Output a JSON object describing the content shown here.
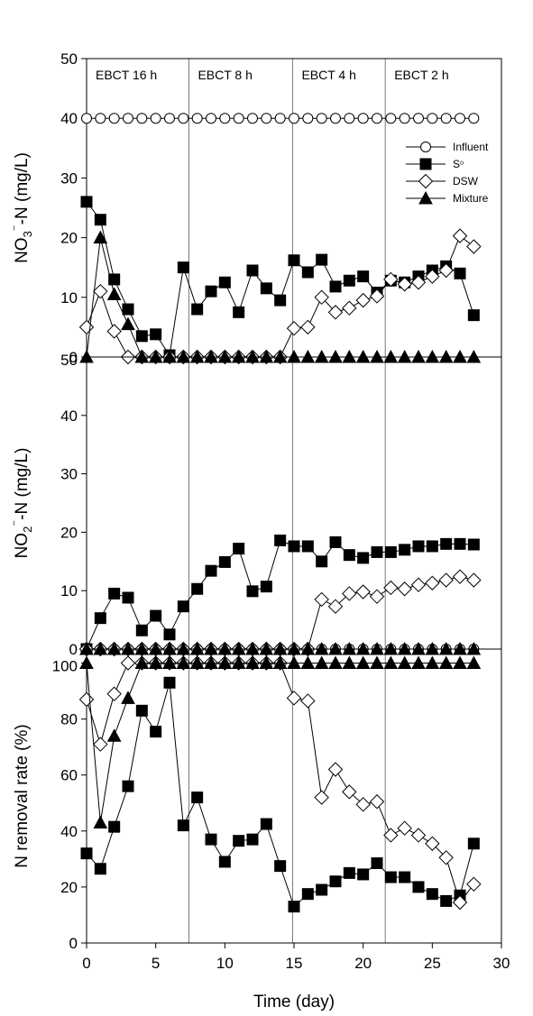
{
  "chart_data": {
    "type": "line",
    "shared_x_axis": {
      "label": "Time (day)",
      "range": [
        0,
        30
      ],
      "ticks": [
        0,
        5,
        10,
        15,
        20,
        25,
        30
      ],
      "tick_labels": [
        "0",
        "5",
        "10",
        "15",
        "20",
        "25",
        "30"
      ]
    },
    "phases": [
      {
        "label": "EBCT 16 h",
        "start": 0,
        "end": 7.4
      },
      {
        "label": "EBCT 8 h",
        "start": 7.4,
        "end": 14.9
      },
      {
        "label": "EBCT 4 h",
        "start": 14.9,
        "end": 21.6
      },
      {
        "label": "EBCT 2 h",
        "start": 21.6,
        "end": 30
      }
    ],
    "legend": {
      "placement": "top-right",
      "entries": [
        {
          "name": "Influent",
          "marker": "circle-open"
        },
        {
          "name": "S⁰",
          "marker": "square-filled"
        },
        {
          "name": "DSW",
          "marker": "diamond-open"
        },
        {
          "name": "Mixture",
          "marker": "triangle-filled"
        }
      ]
    },
    "panels": [
      {
        "ylabel_parts": [
          "NO",
          "3",
          "⁻",
          "-N (mg/L)"
        ],
        "ylim": [
          0,
          50
        ],
        "yticks": [
          0,
          10,
          20,
          30,
          40,
          50
        ],
        "series": [
          {
            "name": "Influent",
            "marker": "circle-open",
            "x": [
              0,
              1,
              2,
              3,
              4,
              5,
              6,
              7,
              8,
              9,
              10,
              11,
              12,
              13,
              14,
              15,
              16,
              17,
              18,
              19,
              20,
              21,
              22,
              23,
              24,
              25,
              26,
              27,
              28
            ],
            "y": [
              40,
              40,
              40,
              40,
              40,
              40,
              40,
              40,
              40,
              40,
              40,
              40,
              40,
              40,
              40,
              40,
              40,
              40,
              40,
              40,
              40,
              40,
              40,
              40,
              40,
              40,
              40,
              40,
              40
            ]
          },
          {
            "name": "S⁰",
            "marker": "square-filled",
            "x": [
              0,
              1,
              2,
              3,
              4,
              5,
              6,
              7,
              8,
              9,
              10,
              11,
              12,
              13,
              14,
              15,
              16,
              17,
              18,
              19,
              20,
              21,
              22,
              23,
              24,
              25,
              26,
              27,
              28
            ],
            "y": [
              26,
              23,
              13,
              8,
              3.5,
              3.8,
              0.3,
              15,
              8,
              11,
              12.5,
              7.5,
              14.5,
              11.5,
              9.5,
              16.2,
              14.2,
              16.3,
              11.8,
              12.8,
              13.5,
              10.8,
              12.8,
              12.5,
              13.5,
              14.5,
              15.2,
              14,
              7
            ]
          },
          {
            "name": "DSW",
            "marker": "diamond-open",
            "x": [
              0,
              1,
              2,
              3,
              4,
              5,
              6,
              7,
              8,
              9,
              10,
              11,
              12,
              13,
              14,
              15,
              16,
              17,
              18,
              19,
              20,
              21,
              22,
              23,
              24,
              25,
              26,
              27,
              28
            ],
            "y": [
              5,
              11,
              4.3,
              0,
              0,
              0,
              0,
              0,
              0,
              0,
              0,
              0,
              0,
              0,
              0,
              4.8,
              5,
              10,
              7.5,
              8.2,
              9.5,
              10.2,
              13,
              12.2,
              12.5,
              13.5,
              14.5,
              20.3,
              18.5
            ]
          },
          {
            "name": "Mixture",
            "marker": "triangle-filled",
            "x": [
              0,
              1,
              2,
              3,
              4,
              5,
              6,
              7,
              8,
              9,
              10,
              11,
              12,
              13,
              14,
              15,
              16,
              17,
              18,
              19,
              20,
              21,
              22,
              23,
              24,
              25,
              26,
              27,
              28
            ],
            "y": [
              0,
              20,
              10.5,
              5.5,
              0,
              0,
              0,
              0,
              0,
              0,
              0,
              0,
              0,
              0,
              0,
              0,
              0,
              0,
              0,
              0,
              0,
              0,
              0,
              0,
              0,
              0,
              0,
              0,
              0
            ]
          }
        ]
      },
      {
        "ylabel_parts": [
          "NO",
          "2",
          "⁻",
          "-N (mg/L)"
        ],
        "ylim": [
          0,
          50
        ],
        "yticks": [
          0,
          10,
          20,
          30,
          40,
          50
        ],
        "series": [
          {
            "name": "Influent",
            "marker": "circle-open",
            "x": [
              0,
              1,
              2,
              3,
              4,
              5,
              6,
              7,
              8,
              9,
              10,
              11,
              12,
              13,
              14,
              15,
              16,
              17,
              18,
              19,
              20,
              21,
              22,
              23,
              24,
              25,
              26,
              27,
              28
            ],
            "y": [
              0,
              0,
              0,
              0,
              0,
              0,
              0,
              0,
              0,
              0,
              0,
              0,
              0,
              0,
              0,
              0,
              0,
              0,
              0,
              0,
              0,
              0,
              0,
              0,
              0,
              0,
              0,
              0,
              0
            ]
          },
          {
            "name": "S⁰",
            "marker": "square-filled",
            "x": [
              0,
              1,
              2,
              3,
              4,
              5,
              6,
              7,
              8,
              9,
              10,
              11,
              12,
              13,
              14,
              15,
              16,
              17,
              18,
              19,
              20,
              21,
              22,
              23,
              24,
              25,
              26,
              27,
              28
            ],
            "y": [
              0,
              5.3,
              9.5,
              8.8,
              3.2,
              5.7,
              2.5,
              7.3,
              10.3,
              13.4,
              14.9,
              17.2,
              9.9,
              10.7,
              18.6,
              17.6,
              17.6,
              15,
              18.3,
              16.1,
              15.6,
              16.6,
              16.6,
              17,
              17.6,
              17.6,
              18,
              18,
              17.9
            ]
          },
          {
            "name": "DSW",
            "marker": "diamond-open",
            "x": [
              0,
              1,
              2,
              3,
              4,
              5,
              6,
              7,
              8,
              9,
              10,
              11,
              12,
              13,
              14,
              15,
              16,
              17,
              18,
              19,
              20,
              21,
              22,
              23,
              24,
              25,
              26,
              27,
              28
            ],
            "y": [
              0,
              0,
              0,
              0,
              0,
              0,
              0,
              0,
              0,
              0,
              0,
              0,
              0,
              0,
              0,
              0,
              0,
              8.5,
              7.3,
              9.5,
              9.8,
              9,
              10.5,
              10.3,
              11,
              11.3,
              11.8,
              12.4,
              11.8
            ]
          },
          {
            "name": "Mixture",
            "marker": "triangle-filled",
            "x": [
              0,
              1,
              2,
              3,
              4,
              5,
              6,
              7,
              8,
              9,
              10,
              11,
              12,
              13,
              14,
              15,
              16,
              17,
              18,
              19,
              20,
              21,
              22,
              23,
              24,
              25,
              26,
              27,
              28
            ],
            "y": [
              0,
              0,
              0,
              0,
              0,
              0,
              0,
              0,
              0,
              0,
              0,
              0,
              0,
              0,
              0,
              0,
              0,
              0,
              0,
              0,
              0,
              0,
              0,
              0,
              0,
              0,
              0,
              0,
              0
            ]
          }
        ]
      },
      {
        "ylabel_parts": [
          "N removal rate (%)"
        ],
        "ylim": [
          0,
          105
        ],
        "yticks": [
          0,
          20,
          40,
          60,
          80,
          100
        ],
        "series": [
          {
            "name": "S⁰",
            "marker": "square-filled",
            "x": [
              0,
              1,
              2,
              3,
              4,
              5,
              6,
              7,
              8,
              9,
              10,
              11,
              12,
              13,
              14,
              15,
              16,
              17,
              18,
              19,
              20,
              21,
              22,
              23,
              24,
              25,
              26,
              27,
              28
            ],
            "y": [
              32,
              26.5,
              41.5,
              56,
              83,
              75.5,
              93,
              42,
              52,
              37,
              29,
              36.5,
              37,
              42.5,
              27.5,
              13,
              17.5,
              19,
              22,
              25,
              24.5,
              28.5,
              23.5,
              23.5,
              20,
              17.5,
              15,
              17,
              35.5
            ]
          },
          {
            "name": "DSW",
            "marker": "diamond-open",
            "x": [
              0,
              1,
              2,
              3,
              4,
              5,
              6,
              7,
              8,
              9,
              10,
              11,
              12,
              13,
              14,
              15,
              16,
              17,
              18,
              19,
              20,
              21,
              22,
              23,
              24,
              25,
              26,
              27,
              28
            ],
            "y": [
              87,
              71,
              89,
              100,
              100,
              100,
              100,
              100,
              100,
              100,
              100,
              100,
              100,
              100,
              100,
              87.5,
              86.5,
              52,
              62,
              54,
              49.5,
              50.5,
              38.5,
              41,
              38.5,
              35.5,
              30.5,
              14.5,
              21
            ]
          },
          {
            "name": "Mixture",
            "marker": "triangle-filled",
            "x": [
              0,
              1,
              2,
              3,
              4,
              5,
              6,
              7,
              8,
              9,
              10,
              11,
              12,
              13,
              14,
              15,
              16,
              17,
              18,
              19,
              20,
              21,
              22,
              23,
              24,
              25,
              26,
              27,
              28
            ],
            "y": [
              100,
              43,
              74,
              87.5,
              100,
              100,
              100,
              100,
              100,
              100,
              100,
              100,
              100,
              100,
              100,
              100,
              100,
              100,
              100,
              100,
              100,
              100,
              100,
              100,
              100,
              100,
              100,
              100,
              100
            ]
          }
        ]
      }
    ]
  }
}
